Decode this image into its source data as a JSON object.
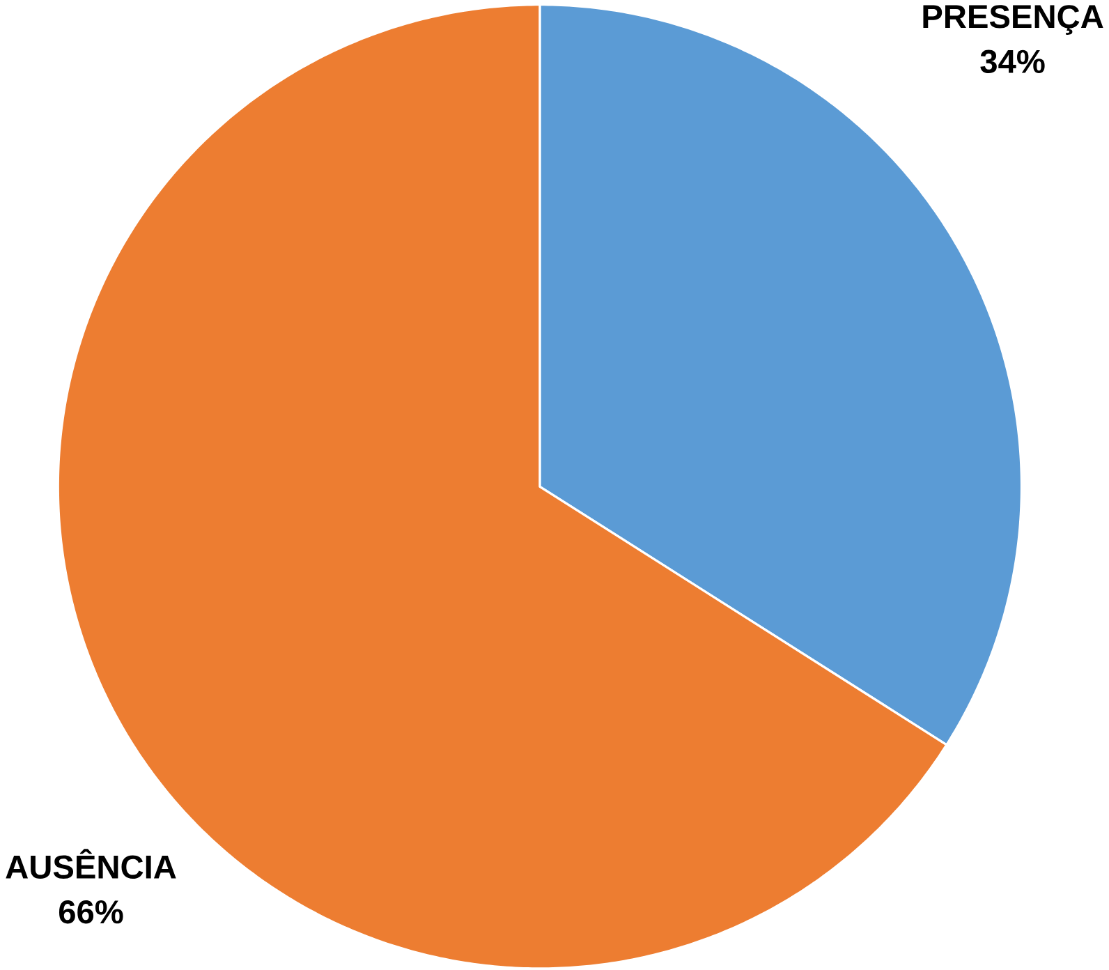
{
  "chart_data": {
    "type": "pie",
    "categories": [
      "PRESENÇA",
      "AUSÊNCIA"
    ],
    "values": [
      34,
      66
    ],
    "value_labels": [
      "34%",
      "66%"
    ],
    "colors": [
      "#5b9bd5",
      "#ed7d31"
    ]
  }
}
